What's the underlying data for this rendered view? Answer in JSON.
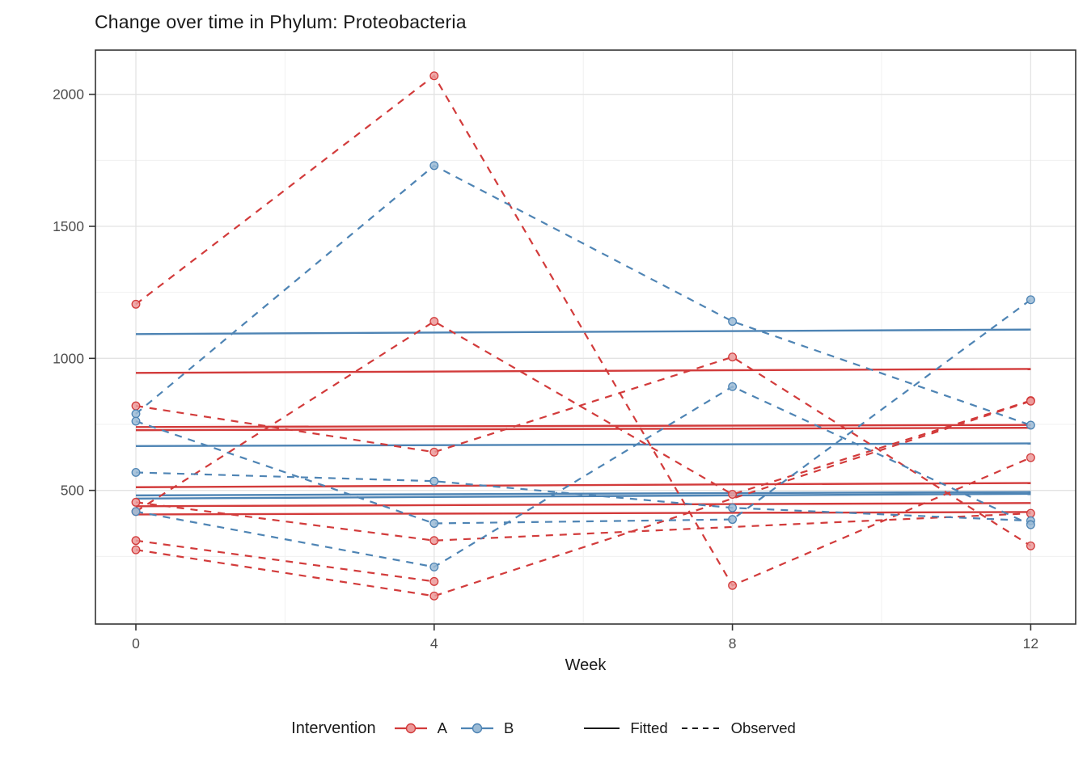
{
  "chart_data": {
    "type": "line",
    "title": "Change over time in Phylum: Proteobacteria",
    "xlabel": "Week",
    "x_ticks": [
      0,
      4,
      8,
      12
    ],
    "x_minor_ticks": [
      2,
      6,
      10
    ],
    "y_ticks": [
      500,
      1000,
      1500,
      2000
    ],
    "y_minor_ticks": [
      250,
      750,
      1250,
      1750
    ],
    "xlim": [
      -0.55,
      12.6
    ],
    "ylim": [
      0,
      2167
    ],
    "weeks": [
      0,
      4,
      8,
      12
    ],
    "grid": "on",
    "legend_position": "bottom",
    "groups": {
      "A": {
        "label": "A",
        "color": "#D23B3B",
        "point_fill": "#EC9A9A"
      },
      "B": {
        "label": "B",
        "color": "#4E84B4",
        "point_fill": "#9BBBD6"
      }
    },
    "observed_series": [
      {
        "id": "A-1",
        "group": "A",
        "values": [
          1205,
          2070,
          140,
          624
        ]
      },
      {
        "id": "A-2",
        "group": "A",
        "values": [
          820,
          645,
          1005,
          290
        ]
      },
      {
        "id": "A-3",
        "group": "A",
        "values": [
          420,
          1140,
          485,
          840
        ]
      },
      {
        "id": "A-4",
        "group": "A",
        "values": [
          455,
          310,
          null,
          413
        ]
      },
      {
        "id": "A-5",
        "group": "A",
        "values": [
          310,
          155,
          null,
          null
        ]
      },
      {
        "id": "A-6",
        "group": "A",
        "values": [
          275,
          100,
          null,
          838
        ]
      },
      {
        "id": "B-1",
        "group": "B",
        "values": [
          790,
          1730,
          1140,
          747
        ]
      },
      {
        "id": "B-2",
        "group": "B",
        "values": [
          762,
          375,
          390,
          1222
        ]
      },
      {
        "id": "B-3",
        "group": "B",
        "values": [
          568,
          535,
          434,
          385
        ]
      },
      {
        "id": "B-4",
        "group": "B",
        "values": [
          420,
          210,
          893,
          370
        ]
      }
    ],
    "fitted_series": [
      {
        "id": "fit-A-1",
        "group": "A",
        "start": 945,
        "end": 960
      },
      {
        "id": "fit-A-2",
        "group": "A",
        "start": 740,
        "end": 748
      },
      {
        "id": "fit-A-3",
        "group": "A",
        "start": 728,
        "end": 737
      },
      {
        "id": "fit-A-4",
        "group": "A",
        "start": 512,
        "end": 528
      },
      {
        "id": "fit-A-5",
        "group": "A",
        "start": 440,
        "end": 452
      },
      {
        "id": "fit-A-6",
        "group": "A",
        "start": 409,
        "end": 418
      },
      {
        "id": "fit-B-1",
        "group": "B",
        "start": 1092,
        "end": 1109
      },
      {
        "id": "fit-B-2",
        "group": "B",
        "start": 668,
        "end": 678
      },
      {
        "id": "fit-B-3",
        "group": "B",
        "start": 481,
        "end": 494
      },
      {
        "id": "fit-B-4",
        "group": "B",
        "start": 469,
        "end": 487
      }
    ],
    "legend": {
      "title": "Intervention",
      "group_a_label": "A",
      "group_b_label": "B",
      "fitted_label": "Fitted",
      "observed_label": "Observed",
      "linetype_color": "#1a1a1a"
    },
    "style": {
      "panel_border_color": "#333333",
      "grid_major_color": "#e3e3e3",
      "grid_minor_color": "#f0f0f0",
      "tick_color": "#333333",
      "tick_label_color": "#4d4d4d"
    }
  }
}
